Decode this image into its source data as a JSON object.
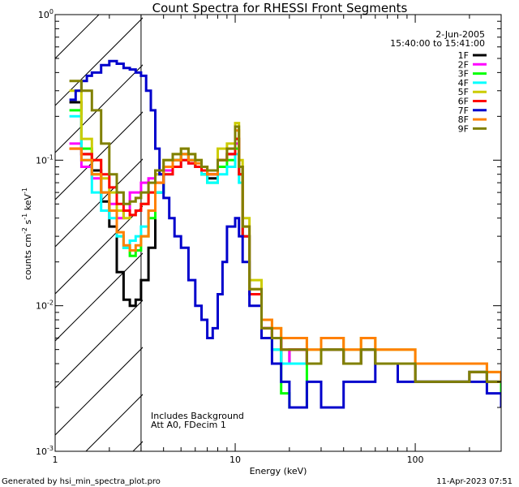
{
  "chart_data": {
    "type": "line",
    "title": "Count Spectra for RHESSI Front Segments",
    "xlabel": "Energy (keV)",
    "ylabel_parts": {
      "a": "counts cm",
      "b": "-2",
      "c": " s",
      "d": "-1",
      "e": " keV",
      "f": "-1"
    },
    "xscale": "log",
    "yscale": "log",
    "xlim": [
      1,
      300
    ],
    "ylim": [
      0.001,
      1
    ],
    "x_ticks": [
      {
        "value": 1,
        "label": "1"
      },
      {
        "value": 10,
        "label": "10"
      },
      {
        "value": 100,
        "label": "100"
      }
    ],
    "y_ticks": [
      {
        "value": 1,
        "mant": "10",
        "exp": "0"
      },
      {
        "value": 0.1,
        "mant": "10",
        "exp": "-1"
      },
      {
        "value": 0.01,
        "mant": "10",
        "exp": "-2"
      },
      {
        "value": 0.001,
        "mant": "10",
        "exp": "-3"
      }
    ],
    "date": "2-Jun-2005",
    "time_range": "15:40:00 to 15:41:00",
    "attenuator_note_1": "Includes Background",
    "attenuator_note_2": "Att A0, FDecim 1",
    "hatched_region_max_energy": 3,
    "legend_position": "top-right",
    "series": [
      {
        "name": "1F",
        "color": "#000000",
        "x": [
          1.2,
          1.4,
          1.6,
          1.8,
          2.0,
          2.2,
          2.4,
          2.6,
          2.8,
          3.0,
          3.3,
          3.6,
          4.0,
          4.5,
          5.0,
          5.5,
          6.0,
          6.5,
          7.0,
          8.0,
          9.0,
          10.0,
          10.5,
          11.0,
          12,
          14,
          16,
          18,
          20,
          25,
          30,
          40,
          50,
          60,
          80,
          100,
          150,
          200,
          250,
          300
        ],
        "y": [
          0.25,
          0.11,
          0.085,
          0.052,
          0.035,
          0.017,
          0.011,
          0.01,
          0.011,
          0.015,
          0.025,
          0.06,
          0.09,
          0.1,
          0.11,
          0.1,
          0.09,
          0.08,
          0.075,
          0.1,
          0.11,
          0.14,
          0.09,
          0.03,
          0.012,
          0.007,
          0.006,
          0.004,
          0.005,
          0.004,
          0.005,
          0.004,
          0.005,
          0.004,
          0.004,
          0.003,
          0.003,
          0.0035,
          0.003,
          0.003
        ]
      },
      {
        "name": "2F",
        "color": "#ff00ff",
        "x": [
          1.2,
          1.4,
          1.6,
          1.8,
          2.0,
          2.2,
          2.4,
          2.6,
          2.8,
          3.0,
          3.3,
          3.6,
          4.0,
          4.5,
          5.0,
          5.5,
          6.0,
          6.5,
          7.0,
          8.0,
          9.0,
          10.0,
          10.5,
          11.0,
          12,
          14,
          16,
          18,
          20,
          25,
          30,
          40,
          50,
          60,
          80,
          100,
          150,
          200,
          250,
          300
        ],
        "y": [
          0.13,
          0.09,
          0.075,
          0.06,
          0.05,
          0.04,
          0.045,
          0.06,
          0.06,
          0.07,
          0.075,
          0.08,
          0.085,
          0.09,
          0.1,
          0.095,
          0.09,
          0.085,
          0.08,
          0.1,
          0.11,
          0.13,
          0.08,
          0.03,
          0.012,
          0.007,
          0.006,
          0.004,
          0.005,
          0.004,
          0.005,
          0.004,
          0.005,
          0.004,
          0.004,
          0.003,
          0.003,
          0.0035,
          0.003,
          0.003
        ]
      },
      {
        "name": "3F",
        "color": "#00ff00",
        "x": [
          1.2,
          1.4,
          1.6,
          1.8,
          2.0,
          2.2,
          2.4,
          2.6,
          2.8,
          3.0,
          3.3,
          3.6,
          4.0,
          4.5,
          5.0,
          5.5,
          6.0,
          6.5,
          7.0,
          8.0,
          9.0,
          10.0,
          10.5,
          11.0,
          12,
          14,
          16,
          18,
          20,
          25,
          30,
          40,
          50,
          60,
          80,
          100,
          150,
          200,
          250,
          300
        ],
        "y": [
          0.22,
          0.12,
          0.08,
          0.06,
          0.045,
          0.03,
          0.025,
          0.022,
          0.024,
          0.03,
          0.04,
          0.06,
          0.09,
          0.1,
          0.11,
          0.1,
          0.09,
          0.08,
          0.07,
          0.09,
          0.1,
          0.12,
          0.08,
          0.03,
          0.012,
          0.006,
          0.005,
          0.0025,
          0.002,
          0.004,
          0.005,
          0.004,
          0.005,
          0.004,
          0.004,
          0.003,
          0.003,
          0.0035,
          0.003,
          0.0025
        ]
      },
      {
        "name": "4F",
        "color": "#00ffff",
        "x": [
          1.2,
          1.4,
          1.6,
          1.8,
          2.0,
          2.2,
          2.4,
          2.6,
          2.8,
          3.0,
          3.3,
          3.6,
          4.0,
          4.5,
          5.0,
          5.5,
          6.0,
          6.5,
          7.0,
          8.0,
          9.0,
          10.0,
          10.5,
          11.0,
          12,
          14,
          16,
          18,
          20,
          25,
          30,
          40,
          50,
          60,
          80,
          100,
          150,
          200,
          250,
          300
        ],
        "y": [
          0.2,
          0.1,
          0.06,
          0.045,
          0.04,
          0.03,
          0.025,
          0.028,
          0.03,
          0.035,
          0.045,
          0.06,
          0.08,
          0.09,
          0.1,
          0.1,
          0.09,
          0.08,
          0.07,
          0.08,
          0.09,
          0.11,
          0.07,
          0.03,
          0.012,
          0.006,
          0.005,
          0.004,
          0.004,
          0.004,
          0.005,
          0.004,
          0.005,
          0.004,
          0.004,
          0.003,
          0.003,
          0.0035,
          0.003,
          0.003
        ]
      },
      {
        "name": "5F",
        "color": "#cccc00",
        "x": [
          1.2,
          1.4,
          1.6,
          1.8,
          2.0,
          2.2,
          2.4,
          2.6,
          2.8,
          3.0,
          3.3,
          3.6,
          4.0,
          4.5,
          5.0,
          5.5,
          6.0,
          6.5,
          7.0,
          8.0,
          9.0,
          10.0,
          10.5,
          11.0,
          12,
          14,
          16,
          18,
          20,
          25,
          30,
          40,
          50,
          60,
          80,
          100,
          150,
          200,
          250,
          300
        ],
        "y": [
          0.3,
          0.14,
          0.1,
          0.075,
          0.06,
          0.045,
          0.04,
          0.042,
          0.045,
          0.05,
          0.06,
          0.08,
          0.1,
          0.11,
          0.12,
          0.11,
          0.1,
          0.09,
          0.085,
          0.12,
          0.13,
          0.18,
          0.1,
          0.04,
          0.015,
          0.008,
          0.007,
          0.006,
          0.006,
          0.005,
          0.006,
          0.005,
          0.006,
          0.005,
          0.005,
          0.004,
          0.004,
          0.004,
          0.0035,
          0.003
        ]
      },
      {
        "name": "6F",
        "color": "#ff0000",
        "x": [
          1.2,
          1.4,
          1.6,
          1.8,
          2.0,
          2.2,
          2.4,
          2.6,
          2.8,
          3.0,
          3.3,
          3.6,
          4.0,
          4.5,
          5.0,
          5.5,
          6.0,
          6.5,
          7.0,
          8.0,
          9.0,
          10.0,
          10.5,
          11.0,
          12,
          14,
          16,
          18,
          20,
          25,
          30,
          40,
          50,
          60,
          80,
          100,
          150,
          200,
          250,
          300
        ],
        "y": [
          0.12,
          0.11,
          0.1,
          0.08,
          0.065,
          0.05,
          0.045,
          0.042,
          0.045,
          0.05,
          0.06,
          0.07,
          0.08,
          0.09,
          0.1,
          0.095,
          0.09,
          0.085,
          0.08,
          0.1,
          0.11,
          0.14,
          0.08,
          0.03,
          0.012,
          0.007,
          0.006,
          0.005,
          0.005,
          0.004,
          0.005,
          0.004,
          0.005,
          0.004,
          0.004,
          0.003,
          0.003,
          0.0035,
          0.003,
          0.003
        ]
      },
      {
        "name": "7F",
        "color": "#0000cc",
        "x": [
          1.2,
          1.3,
          1.4,
          1.5,
          1.6,
          1.8,
          2.0,
          2.2,
          2.4,
          2.6,
          2.8,
          3.0,
          3.2,
          3.4,
          3.6,
          3.8,
          4.0,
          4.3,
          4.6,
          5.0,
          5.5,
          6.0,
          6.5,
          7.0,
          7.5,
          8.0,
          8.5,
          9.0,
          10.0,
          10.5,
          11.0,
          12,
          14,
          16,
          18,
          20,
          25,
          30,
          40,
          50,
          60,
          80,
          100,
          150,
          200,
          250,
          300
        ],
        "y": [
          0.26,
          0.3,
          0.35,
          0.38,
          0.4,
          0.45,
          0.48,
          0.46,
          0.43,
          0.42,
          0.4,
          0.38,
          0.3,
          0.22,
          0.12,
          0.08,
          0.055,
          0.04,
          0.03,
          0.025,
          0.015,
          0.01,
          0.008,
          0.006,
          0.007,
          0.012,
          0.02,
          0.035,
          0.04,
          0.03,
          0.02,
          0.01,
          0.006,
          0.004,
          0.003,
          0.002,
          0.003,
          0.002,
          0.003,
          0.003,
          0.004,
          0.003,
          0.003,
          0.003,
          0.003,
          0.0025,
          0.002
        ]
      },
      {
        "name": "8F",
        "color": "#ff8000",
        "x": [
          1.2,
          1.4,
          1.6,
          1.8,
          2.0,
          2.2,
          2.4,
          2.6,
          2.8,
          3.0,
          3.3,
          3.6,
          4.0,
          4.5,
          5.0,
          5.5,
          6.0,
          6.5,
          7.0,
          8.0,
          9.0,
          10.0,
          10.5,
          11.0,
          12,
          14,
          16,
          18,
          20,
          25,
          30,
          40,
          50,
          60,
          80,
          100,
          150,
          200,
          250,
          300
        ],
        "y": [
          0.12,
          0.1,
          0.08,
          0.06,
          0.045,
          0.032,
          0.026,
          0.024,
          0.026,
          0.03,
          0.045,
          0.07,
          0.09,
          0.1,
          0.11,
          0.1,
          0.095,
          0.09,
          0.08,
          0.1,
          0.12,
          0.16,
          0.09,
          0.035,
          0.013,
          0.008,
          0.007,
          0.006,
          0.006,
          0.005,
          0.006,
          0.005,
          0.006,
          0.005,
          0.005,
          0.004,
          0.004,
          0.004,
          0.0035,
          0.003
        ]
      },
      {
        "name": "9F",
        "color": "#808000",
        "x": [
          1.2,
          1.4,
          1.6,
          1.8,
          2.0,
          2.2,
          2.4,
          2.6,
          2.8,
          3.0,
          3.3,
          3.6,
          4.0,
          4.5,
          5.0,
          5.5,
          6.0,
          6.5,
          7.0,
          8.0,
          9.0,
          10.0,
          10.5,
          11.0,
          12,
          14,
          16,
          18,
          20,
          25,
          30,
          40,
          50,
          60,
          80,
          100,
          150,
          200,
          250,
          300
        ],
        "y": [
          0.35,
          0.3,
          0.22,
          0.13,
          0.08,
          0.06,
          0.05,
          0.052,
          0.055,
          0.06,
          0.07,
          0.085,
          0.1,
          0.11,
          0.12,
          0.11,
          0.1,
          0.09,
          0.085,
          0.1,
          0.12,
          0.17,
          0.09,
          0.035,
          0.013,
          0.007,
          0.006,
          0.005,
          0.005,
          0.004,
          0.005,
          0.004,
          0.005,
          0.004,
          0.004,
          0.003,
          0.003,
          0.0035,
          0.003,
          0.003
        ]
      }
    ]
  },
  "footer": {
    "generator": "Generated by hsi_min_spectra_plot.pro",
    "timestamp": "11-Apr-2023 07:51"
  }
}
